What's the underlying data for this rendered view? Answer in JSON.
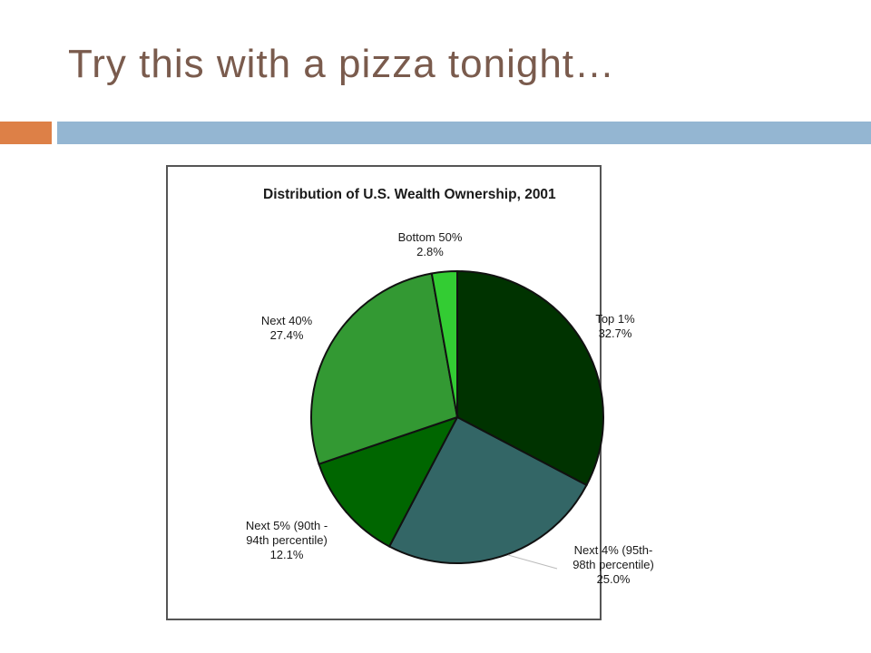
{
  "slide": {
    "title": "Try this with a pizza tonight…",
    "accent_colors": {
      "left_bar": "#dd8047",
      "right_bar": "#94b6d2",
      "title_text": "#7a5b4d"
    }
  },
  "chart_data": {
    "type": "pie",
    "title": "Distribution of U.S. Wealth Ownership, 2001",
    "unit": "%",
    "slices": [
      {
        "label_lines": [
          "Top 1%"
        ],
        "value_label": "32.7%",
        "value": 32.7,
        "color": "#003300"
      },
      {
        "label_lines": [
          "Next 4% (95th-",
          "98th percentile)"
        ],
        "value_label": "25.0%",
        "value": 25.0,
        "color": "#336666"
      },
      {
        "label_lines": [
          "Next 5% (90th -",
          "94th percentile)"
        ],
        "value_label": "12.1%",
        "value": 12.1,
        "color": "#006600"
      },
      {
        "label_lines": [
          "Next 40%"
        ],
        "value_label": "27.4%",
        "value": 27.4,
        "color": "#339933"
      },
      {
        "label_lines": [
          "Bottom 50%"
        ],
        "value_label": "2.8%",
        "value": 2.8,
        "color": "#33cc33"
      }
    ]
  }
}
